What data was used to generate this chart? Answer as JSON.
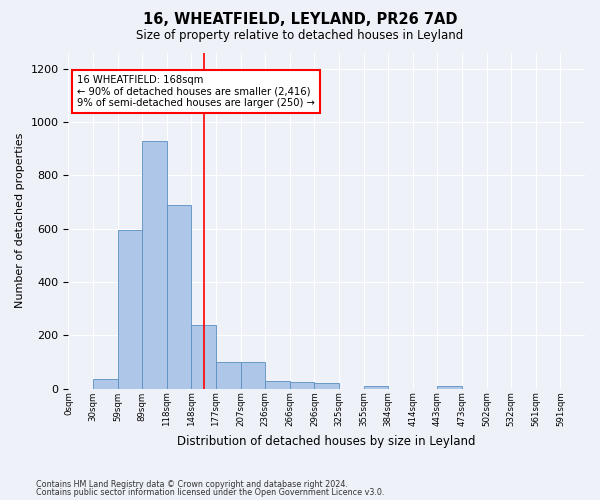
{
  "title_line1": "16, WHEATFIELD, LEYLAND, PR26 7AD",
  "title_line2": "Size of property relative to detached houses in Leyland",
  "xlabel": "Distribution of detached houses by size in Leyland",
  "ylabel": "Number of detached properties",
  "footer_line1": "Contains HM Land Registry data © Crown copyright and database right 2024.",
  "footer_line2": "Contains public sector information licensed under the Open Government Licence v3.0.",
  "bin_labels": [
    "0sqm",
    "30sqm",
    "59sqm",
    "89sqm",
    "118sqm",
    "148sqm",
    "177sqm",
    "207sqm",
    "236sqm",
    "266sqm",
    "296sqm",
    "325sqm",
    "355sqm",
    "384sqm",
    "414sqm",
    "443sqm",
    "473sqm",
    "502sqm",
    "532sqm",
    "561sqm",
    "591sqm"
  ],
  "bar_values": [
    0,
    35,
    595,
    930,
    690,
    240,
    100,
    100,
    30,
    25,
    20,
    0,
    10,
    0,
    0,
    10,
    0,
    0,
    0,
    0,
    0
  ],
  "bar_color": "#aec6e8",
  "bar_edge_color": "#5a8fc0",
  "red_line_x": 5.5,
  "annotation_text": "16 WHEATFIELD: 168sqm\n← 90% of detached houses are smaller (2,416)\n9% of semi-detached houses are larger (250) →",
  "annotation_box_color": "white",
  "annotation_box_edge": "red",
  "ylim": [
    0,
    1260
  ],
  "yticks": [
    0,
    200,
    400,
    600,
    800,
    1000,
    1200
  ],
  "background_color": "#eef2f8"
}
